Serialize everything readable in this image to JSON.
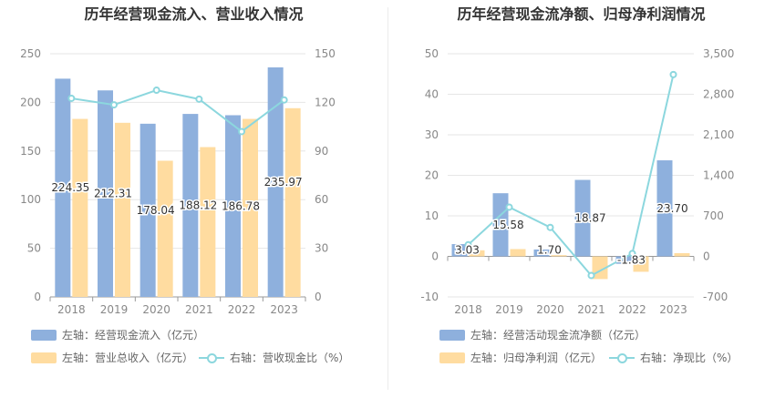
{
  "colors": {
    "blue": "#8eb0dd",
    "orange": "#ffdca0",
    "line": "#8cd7de",
    "grid": "#e6e6e6",
    "axis_text": "#888888",
    "label_text": "#333333"
  },
  "left": {
    "title": "历年经营现金流入、营业收入情况",
    "legend": [
      "左轴：经营现金流入（亿元）",
      "左轴：营业总收入（亿元）",
      "右轴：营收现金比（%）"
    ],
    "left_ticks": [
      "0",
      "50",
      "100",
      "150",
      "200",
      "250"
    ],
    "right_ticks": [
      "0",
      "30",
      "60",
      "90",
      "120",
      "150"
    ]
  },
  "right": {
    "title": "历年经营现金流净额、归母净利润情况",
    "legend": [
      "左轴：经营活动现金流净额（亿元）",
      "左轴：归母净利润（亿元）",
      "右轴：净现比（%）"
    ],
    "left_ticks": [
      "-10",
      "0",
      "10",
      "20",
      "30",
      "40",
      "50"
    ],
    "right_ticks": [
      "-700",
      "0",
      "700",
      "1,400",
      "2,100",
      "2,800",
      "3,500"
    ]
  },
  "chart_data": [
    {
      "type": "bar",
      "categories": [
        "2018",
        "2019",
        "2020",
        "2021",
        "2022",
        "2023"
      ],
      "series": [
        {
          "name": "左轴：经营现金流入（亿元）",
          "axis": "left",
          "values": [
            224.35,
            212.31,
            178.04,
            188.12,
            186.78,
            235.97
          ],
          "labels": [
            "224.35",
            "212.31",
            "178.04",
            "188.12",
            "186.78",
            "235.97"
          ]
        },
        {
          "name": "左轴：营业总收入（亿元）",
          "axis": "left",
          "values": [
            183,
            179,
            140,
            154,
            183,
            194
          ]
        },
        {
          "name": "右轴：营收现金比（%）",
          "axis": "right",
          "type": "line",
          "values": [
            122.5,
            118.5,
            127.5,
            122,
            102,
            121.5
          ]
        }
      ],
      "ylim_left": [
        0,
        250
      ],
      "ylim_right": [
        0,
        150
      ]
    },
    {
      "type": "bar",
      "categories": [
        "2018",
        "2019",
        "2020",
        "2021",
        "2022",
        "2023"
      ],
      "series": [
        {
          "name": "左轴：经营活动现金流净额（亿元）",
          "axis": "left",
          "values": [
            3.03,
            15.58,
            1.7,
            18.87,
            -1.83,
            23.7
          ],
          "labels": [
            "3.03",
            "15.58",
            "1.70",
            "18.87",
            "-1.83",
            "23.70"
          ]
        },
        {
          "name": "左轴：归母净利润（亿元）",
          "axis": "left",
          "values": [
            1.5,
            1.8,
            0.3,
            -5.6,
            -3.8,
            0.8
          ]
        },
        {
          "name": "右轴：净现比（%）",
          "axis": "right",
          "type": "line",
          "values": [
            200,
            850,
            500,
            -330,
            50,
            3140
          ]
        }
      ],
      "ylim_left": [
        -10,
        50
      ],
      "ylim_right": [
        -700,
        3500
      ]
    }
  ]
}
